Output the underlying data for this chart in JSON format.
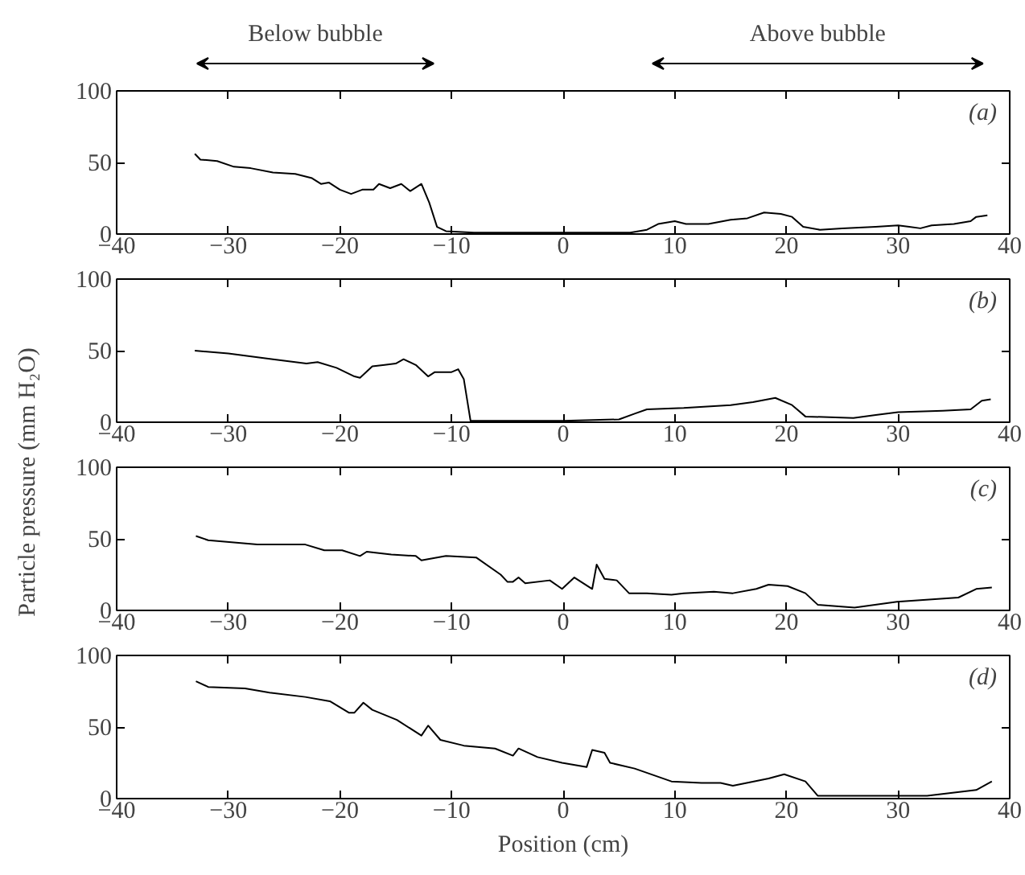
{
  "chart_data": [
    {
      "type": "line",
      "ylabel": "Particle pressure (mm H₂O)",
      "annotations": [
        "Below bubble",
        "Above bubble",
        "(a)"
      ],
      "xlim": [
        -40,
        40
      ],
      "ylim": [
        0,
        100
      ],
      "xticks": [
        {
          "value": -40,
          "label": "−40"
        },
        {
          "value": -30,
          "label": "−30"
        },
        {
          "value": -20,
          "label": "−20"
        },
        {
          "value": -10,
          "label": "−10"
        },
        0,
        10,
        20,
        30,
        40
      ],
      "yticks": [
        0,
        50,
        100
      ],
      "grid": false,
      "series": [
        {
          "color": "#000000",
          "x": [
            -33,
            -32.5,
            -31,
            -29.5,
            -28,
            -26,
            -24,
            -22.5,
            -21.7,
            -21,
            -20,
            -19,
            -18,
            -17,
            -16.5,
            -15.5,
            -14.5,
            -13.7,
            -12.7,
            -12,
            -11.3,
            -10.5,
            -8,
            0,
            6,
            7.5,
            8.5,
            10,
            11,
            13,
            15,
            16.5,
            18,
            19.5,
            20.5,
            21.5,
            23,
            25,
            28,
            30,
            31,
            32,
            33,
            35,
            36.5,
            37,
            38
          ],
          "values": [
            56,
            52,
            51,
            47,
            46,
            43,
            42,
            39,
            35,
            36,
            31,
            28,
            31,
            31,
            35,
            32,
            35,
            30,
            35,
            22,
            5,
            2,
            1,
            1,
            1,
            3,
            7,
            9,
            7,
            7,
            10,
            11,
            15,
            14,
            12,
            5,
            3,
            4,
            5,
            6,
            5,
            4,
            6,
            7,
            9,
            12,
            13
          ]
        }
      ]
    },
    {
      "type": "line",
      "annotations": [
        "(b)"
      ],
      "xlim": [
        -40,
        40
      ],
      "ylim": [
        0,
        100
      ],
      "xticks": [
        {
          "value": -40,
          "label": "−40"
        },
        {
          "value": -30,
          "label": "−30"
        },
        {
          "value": -20,
          "label": "−20"
        },
        {
          "value": -10,
          "label": "−10"
        },
        0,
        10,
        20,
        30,
        40
      ],
      "yticks": [
        0,
        50,
        100
      ],
      "grid": false,
      "series": [
        {
          "color": "#000000",
          "x": [
            -33,
            -30,
            -26,
            -23,
            -22,
            -20.3,
            -18.7,
            -18.2,
            -17.1,
            -16,
            -15,
            -14.3,
            -13.2,
            -12.1,
            -11.5,
            -10,
            -9.4,
            -8.9,
            -8.3,
            0,
            5,
            6.4,
            7.5,
            10.8,
            15,
            17,
            19,
            20.5,
            21.7,
            26,
            28,
            30,
            34,
            36.5,
            37.5,
            38.3
          ],
          "values": [
            50,
            48,
            44,
            41,
            42,
            38,
            32,
            31,
            39,
            40,
            41,
            44,
            40,
            32,
            35,
            35,
            37,
            30,
            1,
            1,
            2,
            6,
            9,
            10,
            12,
            14,
            17,
            12,
            4,
            3,
            5,
            7,
            8,
            9,
            15,
            16
          ]
        }
      ]
    },
    {
      "type": "line",
      "annotations": [
        "(c)"
      ],
      "xlim": [
        -40,
        40
      ],
      "ylim": [
        0,
        100
      ],
      "xticks": [
        {
          "value": -40,
          "label": "−40"
        },
        {
          "value": -30,
          "label": "−30"
        },
        {
          "value": -20,
          "label": "−20"
        },
        {
          "value": -10,
          "label": "−10"
        },
        0,
        10,
        20,
        30,
        40
      ],
      "yticks": [
        0,
        50,
        100
      ],
      "grid": false,
      "series": [
        {
          "color": "#000000",
          "x": [
            -32.9,
            -31.8,
            -27.4,
            -25.3,
            -23.1,
            -21.4,
            -19.8,
            -18.2,
            -17.6,
            -15.4,
            -13.2,
            -12.7,
            -10.5,
            -7.8,
            -5.6,
            -5,
            -4.5,
            -4,
            -3.4,
            -1.2,
            -0.1,
            1,
            2.6,
            3,
            3.7,
            4.8,
            5.9,
            7.5,
            9.7,
            10.8,
            13.5,
            15.2,
            17.3,
            18.4,
            20.1,
            21.7,
            22.8,
            26.1,
            29.9,
            35.4,
            37,
            38.4
          ],
          "values": [
            52,
            49,
            46,
            46,
            46,
            42,
            42,
            38,
            41,
            39,
            38,
            35,
            38,
            37,
            25,
            20,
            20,
            23,
            19,
            21,
            15,
            23,
            15,
            32,
            22,
            21,
            12,
            12,
            11,
            12,
            13,
            12,
            15,
            18,
            17,
            12,
            4,
            2,
            6,
            9,
            15,
            16
          ]
        }
      ]
    },
    {
      "type": "line",
      "xlabel": "Position (cm)",
      "annotations": [
        "(d)"
      ],
      "xlim": [
        -40,
        40
      ],
      "ylim": [
        0,
        100
      ],
      "xticks": [
        {
          "value": -40,
          "label": "−40"
        },
        {
          "value": -30,
          "label": "−30"
        },
        {
          "value": -20,
          "label": "−20"
        },
        {
          "value": -10,
          "label": "−10"
        },
        0,
        10,
        20,
        30,
        40
      ],
      "yticks": [
        0,
        50,
        100
      ],
      "grid": false,
      "series": [
        {
          "color": "#000000",
          "x": [
            -32.9,
            -31.8,
            -28.5,
            -26.3,
            -23.1,
            -20.9,
            -19.2,
            -18.7,
            -17.9,
            -17.1,
            -14.9,
            -12.7,
            -12.1,
            -11,
            -8.9,
            -6.1,
            -4.5,
            -4,
            -2.3,
            -0.1,
            2.1,
            2.6,
            3.7,
            4.2,
            6.4,
            9.7,
            12.4,
            14.1,
            15.2,
            18.4,
            19.8,
            21.7,
            22.8,
            32.6,
            37,
            38.4
          ],
          "values": [
            82,
            78,
            77,
            74,
            71,
            68,
            60,
            60,
            67,
            62,
            55,
            44,
            51,
            41,
            37,
            35,
            30,
            35,
            29,
            25,
            22,
            34,
            32,
            25,
            21,
            12,
            11,
            11,
            9,
            14,
            17,
            12,
            2,
            2,
            6,
            12
          ]
        }
      ]
    }
  ]
}
